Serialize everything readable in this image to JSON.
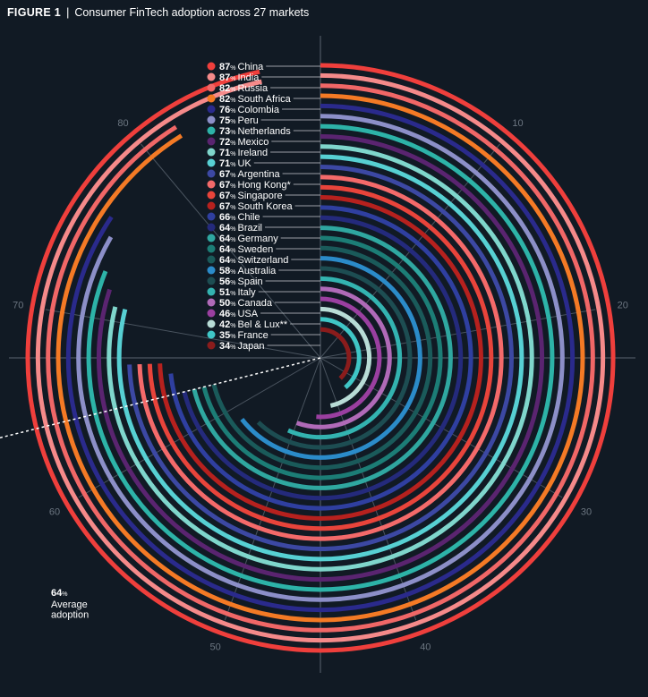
{
  "figure": {
    "label": "FIGURE 1",
    "separator": "|",
    "title": "Consumer FinTech adoption across 27 markets"
  },
  "chart_data": {
    "type": "radial bar",
    "title": "Consumer FinTech adoption across 27 markets",
    "unit": "%",
    "angular_ticks": [
      "10",
      "20",
      "30",
      "40",
      "50",
      "60",
      "70",
      "80"
    ],
    "full_circle_value": 90,
    "average": {
      "value": 64,
      "unit": "%",
      "label_lines": [
        "Average",
        "adoption"
      ]
    },
    "series": [
      {
        "name": "China",
        "value": 87,
        "color": "#ef3f3c"
      },
      {
        "name": "India",
        "value": 87,
        "color": "#f58a8a"
      },
      {
        "name": "Russia",
        "value": 82,
        "color": "#f06767"
      },
      {
        "name": "South Africa",
        "value": 82,
        "color": "#f47a25"
      },
      {
        "name": "Colombia",
        "value": 76,
        "color": "#2a2a8c"
      },
      {
        "name": "Peru",
        "value": 75,
        "color": "#8c8fc8"
      },
      {
        "name": "Netherlands",
        "value": 73,
        "color": "#2db3a8"
      },
      {
        "name": "Mexico",
        "value": 72,
        "color": "#5a2470"
      },
      {
        "name": "Ireland",
        "value": 71,
        "color": "#7fd6cc"
      },
      {
        "name": "UK",
        "value": 71,
        "color": "#57d0d3"
      },
      {
        "name": "Argentina",
        "value": 67,
        "color": "#3c48a3"
      },
      {
        "name": "Hong Kong*",
        "value": 67,
        "color": "#f46a6a"
      },
      {
        "name": "Singapore",
        "value": 67,
        "color": "#e8443b"
      },
      {
        "name": "South Korea",
        "value": 67,
        "color": "#b6211e"
      },
      {
        "name": "Chile",
        "value": 66,
        "color": "#2f3fa0"
      },
      {
        "name": "Brazil",
        "value": 64,
        "color": "#242a7c"
      },
      {
        "name": "Germany",
        "value": 64,
        "color": "#2fa7a0"
      },
      {
        "name": "Sweden",
        "value": 64,
        "color": "#1c7d76"
      },
      {
        "name": "Switzerland",
        "value": 64,
        "color": "#1a5a5a"
      },
      {
        "name": "Australia",
        "value": 58,
        "color": "#2b8bc9"
      },
      {
        "name": "Spain",
        "value": 56,
        "color": "#1d4d52"
      },
      {
        "name": "Italy",
        "value": 51,
        "color": "#33b3b0"
      },
      {
        "name": "Canada",
        "value": 50,
        "color": "#b06ab8"
      },
      {
        "name": "USA",
        "value": 46,
        "color": "#9a3fa0"
      },
      {
        "name": "Bel & Lux**",
        "value": 42,
        "color": "#b8dcd6"
      },
      {
        "name": "France",
        "value": 35,
        "color": "#3fc6c6"
      },
      {
        "name": "Japan",
        "value": 34,
        "color": "#8a1c1c"
      }
    ]
  }
}
